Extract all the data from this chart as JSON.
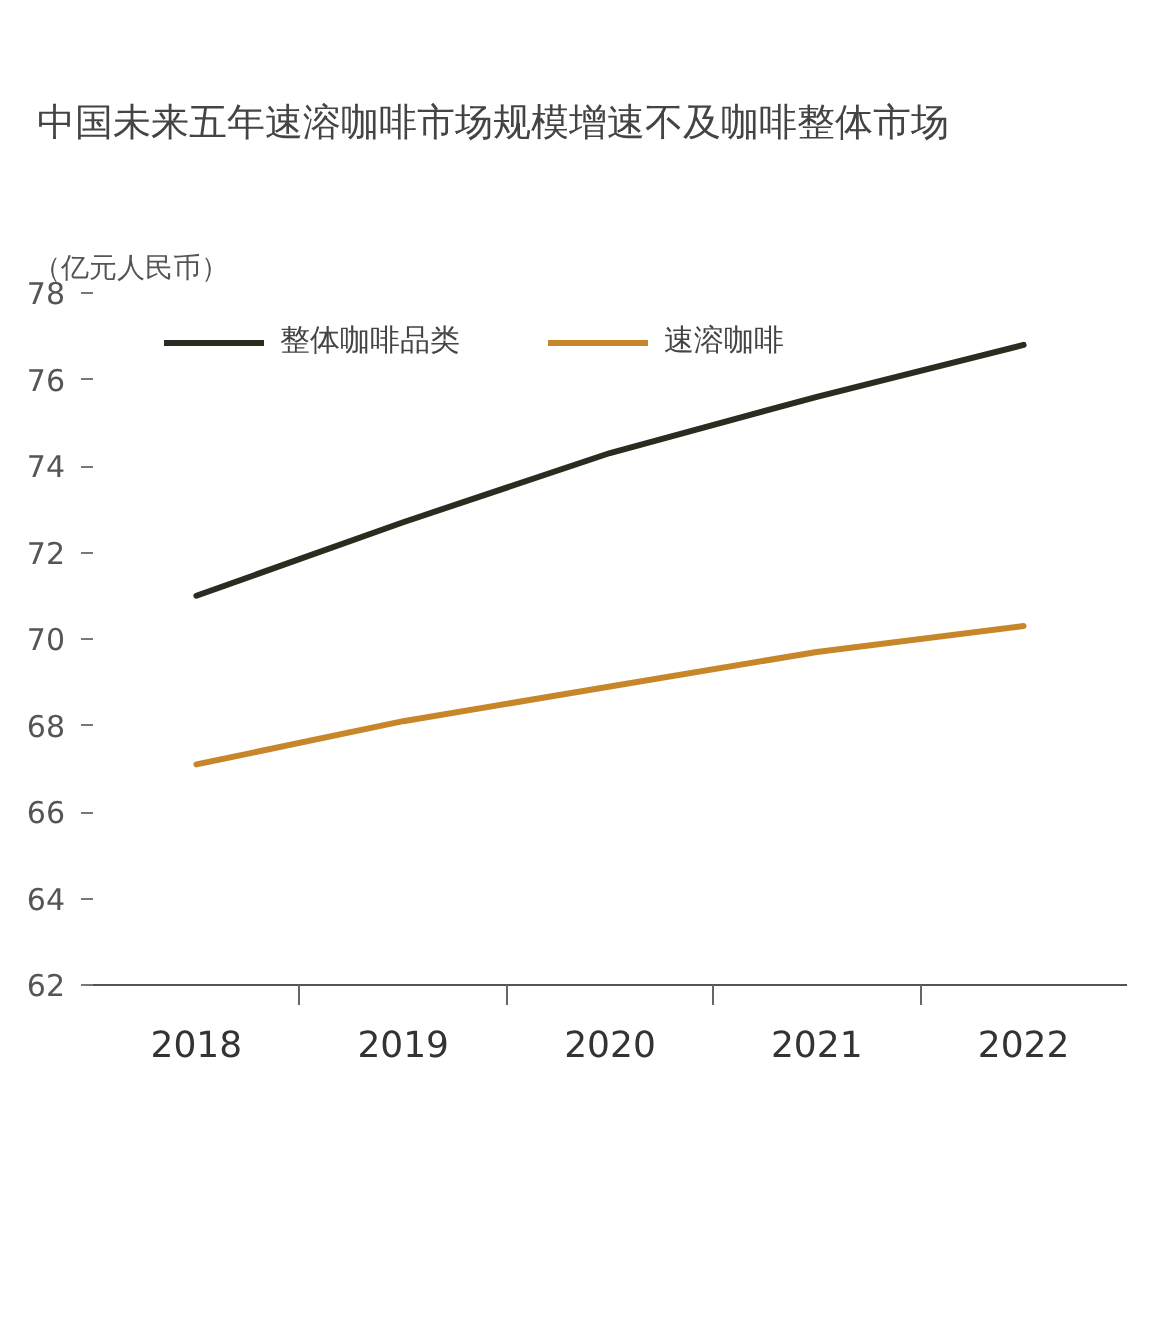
{
  "chart_data": {
    "type": "line",
    "title": "中国未来五年速溶咖啡市场规模增速不及咖啡整体市场",
    "ylabel": "（亿元人民币）",
    "categories": [
      "2018",
      "2019",
      "2020",
      "2021",
      "2022"
    ],
    "series": [
      {
        "name": "整体咖啡品类",
        "color": "#2b2b1f",
        "values": [
          71.0,
          72.7,
          74.3,
          75.6,
          76.8
        ]
      },
      {
        "name": "速溶咖啡",
        "color": "#c8862a",
        "values": [
          67.1,
          68.1,
          68.9,
          69.7,
          70.3
        ]
      }
    ],
    "ylim": [
      62,
      78
    ],
    "yticks": [
      62,
      64,
      66,
      68,
      70,
      72,
      74,
      76,
      78
    ],
    "grid": false,
    "legend": "top",
    "marker": "none",
    "line_style": "solid"
  }
}
